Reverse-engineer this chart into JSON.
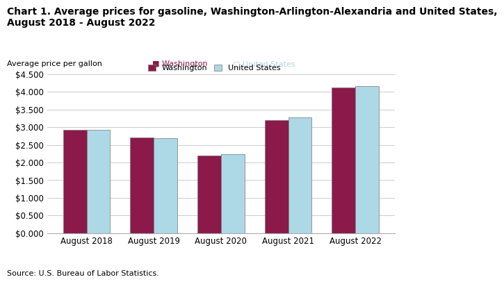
{
  "title_line1": "Chart 1. Average prices for gasoline, Washington-Arlington-Alexandria and United States,",
  "title_line2": "August 2018 - August 2022",
  "ylabel": "Average price per gallon",
  "source": "Source: U.S. Bureau of Labor Statistics.",
  "categories": [
    "August 2018",
    "August 2019",
    "August 2020",
    "August 2021",
    "August 2022"
  ],
  "washington_values": [
    2.92,
    2.7,
    2.2,
    3.2,
    4.12
  ],
  "us_values": [
    2.92,
    2.69,
    2.23,
    3.28,
    4.16
  ],
  "washington_color": "#8B1A4A",
  "us_color": "#ADD8E6",
  "bar_edge_color": "#777777",
  "legend_washington": "Washington",
  "legend_us": "United States",
  "ylim_min": 0.0,
  "ylim_max": 4.5,
  "ytick_step": 0.5,
  "bar_width": 0.35,
  "background_color": "#ffffff",
  "grid_color": "#cccccc",
  "title_fontsize": 10,
  "label_fontsize": 8,
  "tick_fontsize": 8.5,
  "source_fontsize": 8
}
